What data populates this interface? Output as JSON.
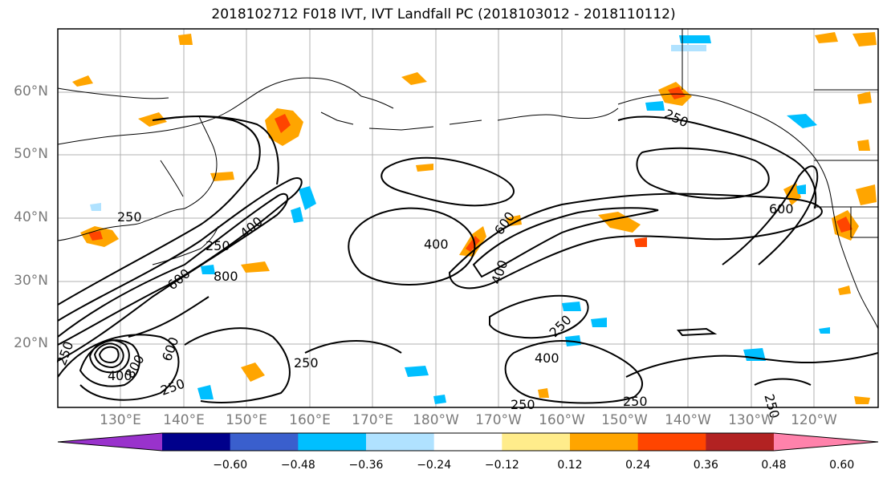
{
  "title": "2018102712 F018 IVT, IVT Landfall PC (2018103012 - 2018110112)",
  "lat_labels": [
    "60°N",
    "50°N",
    "40°N",
    "30°N",
    "20°N"
  ],
  "lon_labels": [
    "130°E",
    "140°E",
    "150°E",
    "160°E",
    "170°E",
    "180°W",
    "170°W",
    "160°W",
    "150°W",
    "140°W",
    "130°W",
    "120°W"
  ],
  "contour_labels": [
    "250",
    "250",
    "400",
    "250",
    "400",
    "600",
    "800",
    "400",
    "600",
    "400",
    "250",
    "400",
    "600",
    "800",
    "250",
    "250",
    "250",
    "250",
    "250",
    "600",
    "250"
  ],
  "colorbar": {
    "ticks": [
      "−0.60",
      "−0.48",
      "−0.36",
      "−0.24",
      "−0.12",
      "0.12",
      "0.24",
      "0.36",
      "0.48",
      "0.60"
    ],
    "colors": [
      "#9932cc",
      "#00008b",
      "#3a5fcd",
      "#00bfff",
      "#b0e2ff",
      "#ffffff",
      "#ffec8b",
      "#ffa500",
      "#ff4500",
      "#b22222",
      "#ff82ab"
    ]
  },
  "colors": {
    "grid": "#b0b0b0",
    "coast": "#000000",
    "axis_label": "#7a7a7a"
  }
}
